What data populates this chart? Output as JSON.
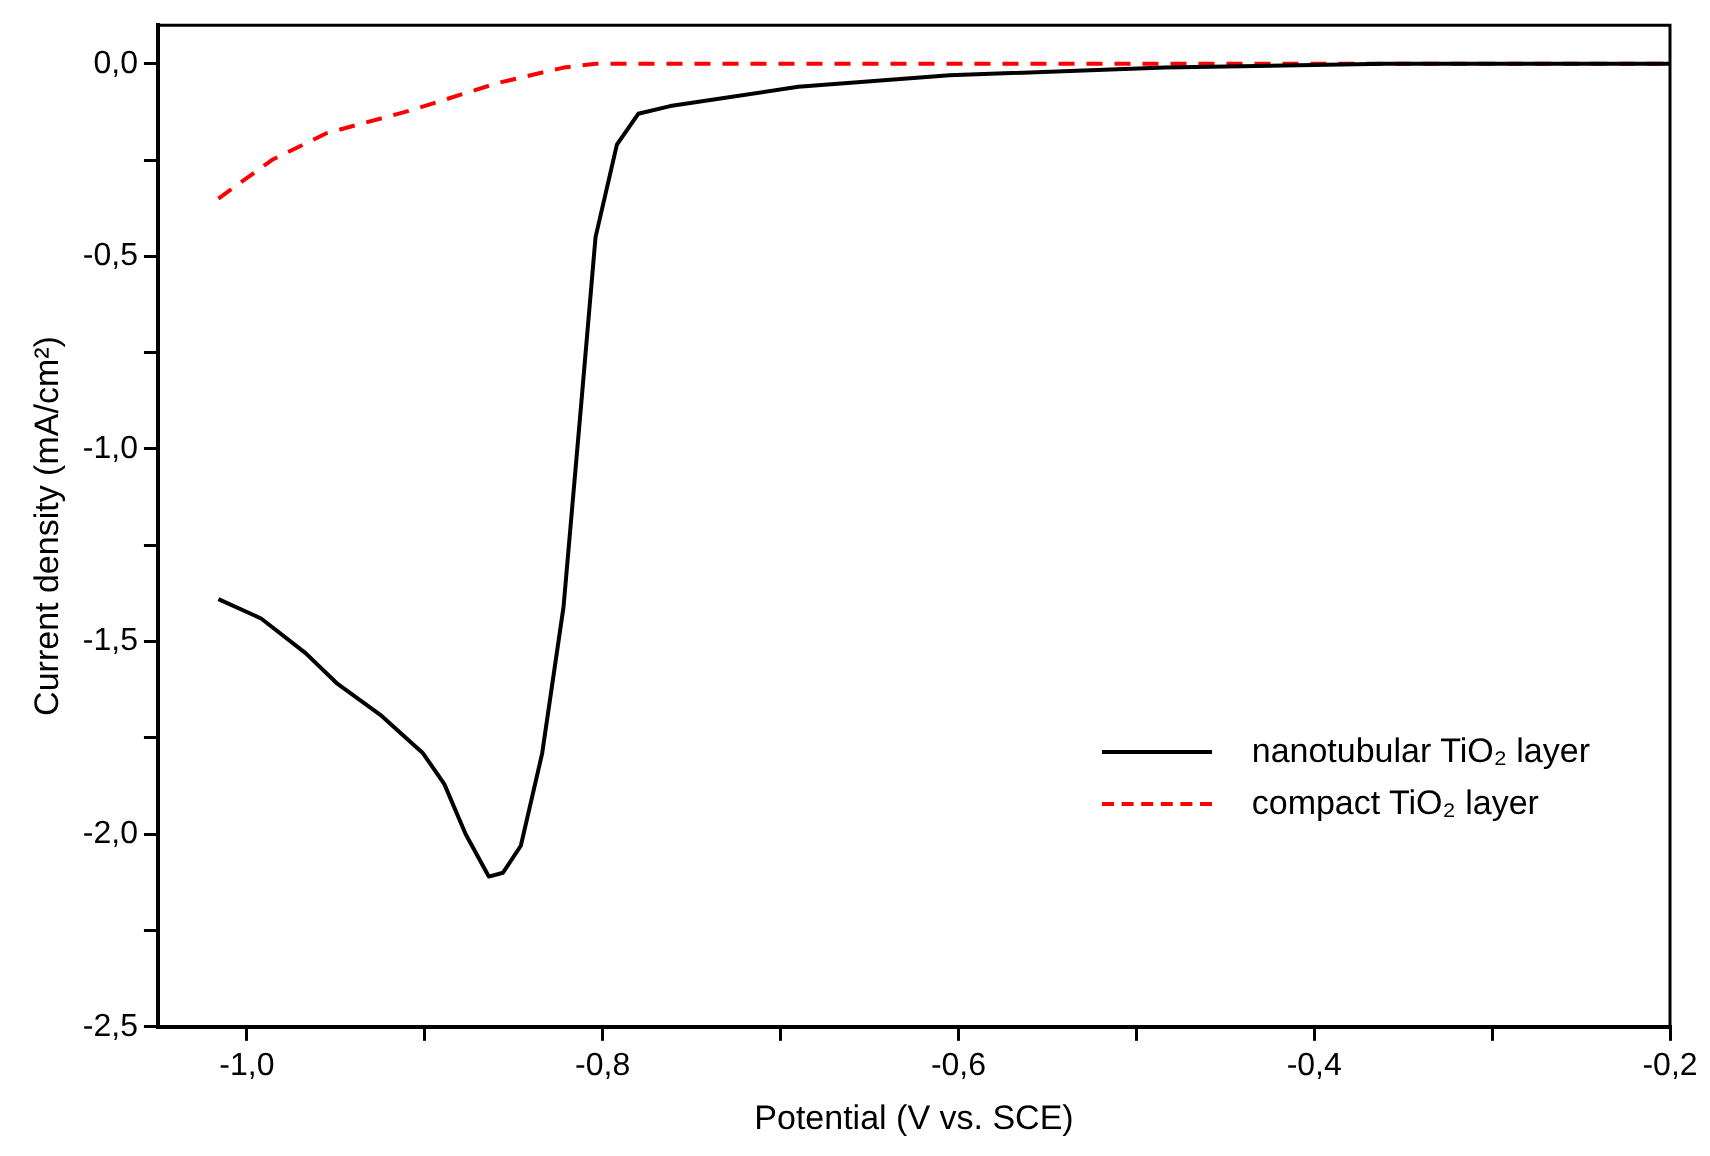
{
  "chart_data": {
    "type": "line",
    "xlabel": "Potential (V vs. SCE)",
    "ylabel": "Current density (mA/cm²)",
    "xlim": [
      -1.05,
      -0.2
    ],
    "ylim": [
      -2.5,
      0.1
    ],
    "xticks": [
      {
        "value": -1.0,
        "label": "-1,0"
      },
      {
        "value": -0.9,
        "label": null
      },
      {
        "value": -0.8,
        "label": "-0,8"
      },
      {
        "value": -0.7,
        "label": null
      },
      {
        "value": -0.6,
        "label": "-0,6"
      },
      {
        "value": -0.5,
        "label": null
      },
      {
        "value": -0.4,
        "label": "-0,4"
      },
      {
        "value": -0.3,
        "label": null
      },
      {
        "value": -0.2,
        "label": "-0,2"
      }
    ],
    "yticks": [
      {
        "value": 0,
        "label": "0,0"
      },
      {
        "value": -0.25,
        "label": null
      },
      {
        "value": -0.5,
        "label": "-0,5"
      },
      {
        "value": -0.75,
        "label": null
      },
      {
        "value": -1.0,
        "label": "-1,0"
      },
      {
        "value": -1.25,
        "label": null
      },
      {
        "value": -1.5,
        "label": "-1,5"
      },
      {
        "value": -1.75,
        "label": null
      },
      {
        "value": -2.0,
        "label": "-2,0"
      },
      {
        "value": -2.25,
        "label": null
      },
      {
        "value": -2.5,
        "label": "-2,5"
      }
    ],
    "grid": false,
    "legend": "bottom right",
    "marker": "none",
    "series": [
      {
        "name": "nanotubular TiO₂ layer",
        "color": "#000000",
        "line_style": "solid",
        "x": [
          -1.016,
          -0.992,
          -0.967,
          -0.949,
          -0.925,
          -0.901,
          -0.889,
          -0.877,
          -0.864,
          -0.856,
          -0.846,
          -0.834,
          -0.822,
          -0.812,
          -0.804,
          -0.792,
          -0.78,
          -0.762,
          -0.69,
          -0.605,
          -0.484,
          -0.36,
          -0.2
        ],
        "values": [
          -1.39,
          -1.44,
          -1.53,
          -1.61,
          -1.69,
          -1.79,
          -1.87,
          -2.0,
          -2.11,
          -2.1,
          -2.03,
          -1.79,
          -1.41,
          -0.88,
          -0.45,
          -0.21,
          -0.13,
          -0.11,
          -0.06,
          -0.03,
          -0.01,
          0,
          0
        ]
      },
      {
        "name": "compact TiO₂ layer",
        "color": "#ff0000",
        "line_style": "dashed",
        "x": [
          -1.016,
          -0.986,
          -0.955,
          -0.907,
          -0.859,
          -0.822,
          -0.804,
          -0.2
        ],
        "values": [
          -0.35,
          -0.25,
          -0.18,
          -0.12,
          -0.05,
          -0.01,
          0,
          0
        ]
      }
    ]
  }
}
